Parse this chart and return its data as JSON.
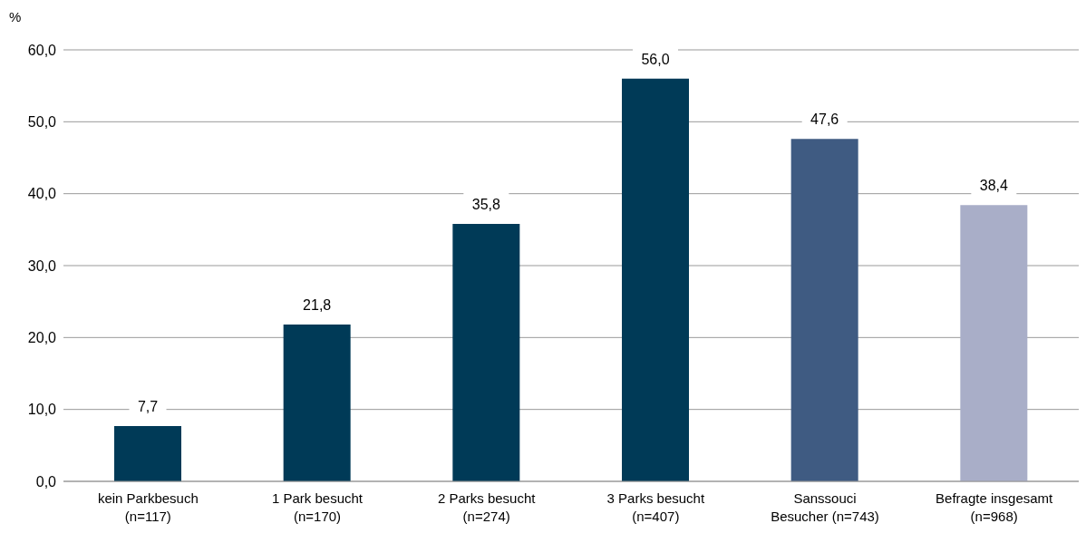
{
  "chart_data": {
    "type": "bar",
    "ylabel": "%",
    "categories": [
      "kein Parkbesuch\n(n=117)",
      "1 Park besucht\n(n=170)",
      "2 Parks besucht\n(n=274)",
      "3 Parks besucht\n(n=407)",
      "Sanssouci\nBesucher (n=743)",
      "Befragte insgesamt\n(n=968)"
    ],
    "values": [
      7.7,
      21.8,
      35.8,
      56.0,
      47.6,
      38.4
    ],
    "colors": [
      "#003a57",
      "#003a57",
      "#003a57",
      "#003a57",
      "#3f5b82",
      "#a9aec8"
    ],
    "value_labels": [
      "7,7",
      "21,8",
      "35,8",
      "56,0",
      "47,6",
      "38,4"
    ],
    "ylim": [
      0,
      60
    ],
    "yticks": [
      {
        "value": 0,
        "label": "0,0"
      },
      {
        "value": 10,
        "label": "10,0"
      },
      {
        "value": 20,
        "label": "20,0"
      },
      {
        "value": 30,
        "label": "30,0"
      },
      {
        "value": 40,
        "label": "40,0"
      },
      {
        "value": 50,
        "label": "50,0"
      },
      {
        "value": 60,
        "label": "60,0"
      }
    ],
    "grid": "y"
  }
}
